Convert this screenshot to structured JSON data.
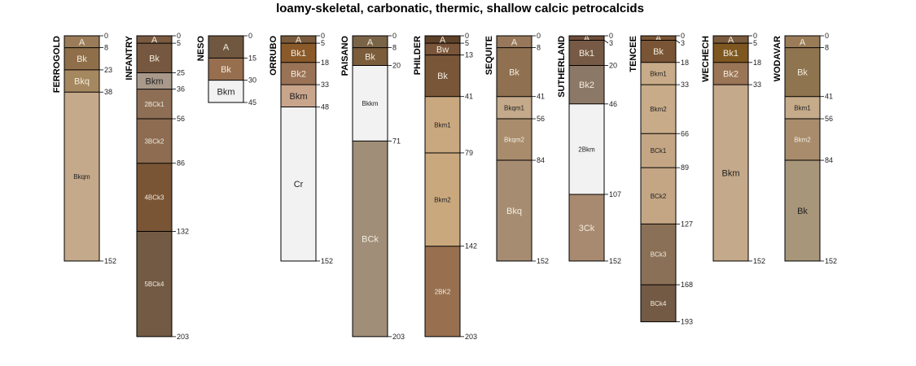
{
  "title": "loamy-skeletal, carbonatic, thermic, shallow calcic petrocalcids",
  "profiles": [
    {
      "name": "FERROGOLD",
      "horizons": [
        {
          "name": "A",
          "top": 0,
          "bottom": 8,
          "color": "#9a7c58"
        },
        {
          "name": "Bk",
          "top": 8,
          "bottom": 23,
          "color": "#8f6f4a"
        },
        {
          "name": "Bkq",
          "top": 23,
          "bottom": 38,
          "color": "#a68860"
        },
        {
          "name": "Bkqm",
          "top": 38,
          "bottom": 152,
          "color": "#c4a98a"
        }
      ]
    },
    {
      "name": "INFANTRY",
      "horizons": [
        {
          "name": "A",
          "top": 0,
          "bottom": 5,
          "color": "#7a5a40"
        },
        {
          "name": "Bk",
          "top": 5,
          "bottom": 25,
          "color": "#76573f"
        },
        {
          "name": "Bkm",
          "top": 25,
          "bottom": 36,
          "color": "#a8998a"
        },
        {
          "name": "2BCk1",
          "top": 36,
          "bottom": 56,
          "color": "#8e6f56"
        },
        {
          "name": "3BCk2",
          "top": 56,
          "bottom": 86,
          "color": "#8d6c52"
        },
        {
          "name": "4BCk3",
          "top": 86,
          "bottom": 132,
          "color": "#7a5535"
        },
        {
          "name": "5BCk4",
          "top": 132,
          "bottom": 203,
          "color": "#735a44"
        }
      ]
    },
    {
      "name": "NESO",
      "horizons": [
        {
          "name": "A",
          "top": 0,
          "bottom": 15,
          "color": "#705840"
        },
        {
          "name": "Bk",
          "top": 15,
          "bottom": 30,
          "color": "#976f4f"
        },
        {
          "name": "Bkm",
          "top": 30,
          "bottom": 45,
          "color": "#f2f2f2"
        }
      ]
    },
    {
      "name": "ORRUBO",
      "horizons": [
        {
          "name": "A",
          "top": 0,
          "bottom": 5,
          "color": "#7b5b3d"
        },
        {
          "name": "Bk1",
          "top": 5,
          "bottom": 18,
          "color": "#8a5a2b"
        },
        {
          "name": "Bk2",
          "top": 18,
          "bottom": 33,
          "color": "#9a7256"
        },
        {
          "name": "Bkm",
          "top": 33,
          "bottom": 48,
          "color": "#c9a58c"
        },
        {
          "name": "Cr",
          "top": 48,
          "bottom": 152,
          "color": "#f2f2f2"
        }
      ]
    },
    {
      "name": "PAISANO",
      "horizons": [
        {
          "name": "A",
          "top": 0,
          "bottom": 8,
          "color": "#7a6448"
        },
        {
          "name": "Bk",
          "top": 8,
          "bottom": 20,
          "color": "#7b5c3b"
        },
        {
          "name": "Bkkm",
          "top": 20,
          "bottom": 71,
          "color": "#f2f2f2"
        },
        {
          "name": "BCk",
          "top": 71,
          "bottom": 203,
          "color": "#a08e78"
        }
      ]
    },
    {
      "name": "PHILDER",
      "horizons": [
        {
          "name": "A",
          "top": 0,
          "bottom": 5,
          "color": "#5e4129"
        },
        {
          "name": "Bw",
          "top": 5,
          "bottom": 13,
          "color": "#7a553a"
        },
        {
          "name": "Bk",
          "top": 13,
          "bottom": 41,
          "color": "#7a5639"
        },
        {
          "name": "Bkm1",
          "top": 41,
          "bottom": 79,
          "color": "#caa87f"
        },
        {
          "name": "Bkm2",
          "top": 79,
          "bottom": 142,
          "color": "#c9a87d"
        },
        {
          "name": "2BK2",
          "top": 142,
          "bottom": 203,
          "color": "#987050"
        }
      ]
    },
    {
      "name": "SEQUITE",
      "horizons": [
        {
          "name": "A",
          "top": 0,
          "bottom": 8,
          "color": "#98785a"
        },
        {
          "name": "Bk",
          "top": 8,
          "bottom": 41,
          "color": "#8f7050"
        },
        {
          "name": "Bkqm1",
          "top": 41,
          "bottom": 56,
          "color": "#c4a98a"
        },
        {
          "name": "Bkqm2",
          "top": 56,
          "bottom": 84,
          "color": "#a88c6c"
        },
        {
          "name": "Bkq",
          "top": 84,
          "bottom": 152,
          "color": "#a68d72"
        }
      ]
    },
    {
      "name": "SUTHERLAND",
      "horizons": [
        {
          "name": "A",
          "top": 0,
          "bottom": 3,
          "color": "#6e4e3a"
        },
        {
          "name": "Bk1",
          "top": 3,
          "bottom": 20,
          "color": "#765a45"
        },
        {
          "name": "Bk2",
          "top": 20,
          "bottom": 46,
          "color": "#8c7866"
        },
        {
          "name": "2Bkm",
          "top": 46,
          "bottom": 107,
          "color": "#f2f2f2"
        },
        {
          "name": "3Ck",
          "top": 107,
          "bottom": 152,
          "color": "#a88a70"
        }
      ]
    },
    {
      "name": "TENCEE",
      "horizons": [
        {
          "name": "A",
          "top": 0,
          "bottom": 3,
          "color": "#7a5535"
        },
        {
          "name": "Bk",
          "top": 3,
          "bottom": 18,
          "color": "#7a5535"
        },
        {
          "name": "Bkm1",
          "top": 18,
          "bottom": 33,
          "color": "#c8ab88"
        },
        {
          "name": "Bkm2",
          "top": 33,
          "bottom": 66,
          "color": "#c8ab88"
        },
        {
          "name": "BCk1",
          "top": 66,
          "bottom": 89,
          "color": "#c4a685"
        },
        {
          "name": "BCk2",
          "top": 89,
          "bottom": 127,
          "color": "#c4a685"
        },
        {
          "name": "BCk3",
          "top": 127,
          "bottom": 168,
          "color": "#8a7056"
        },
        {
          "name": "BCk4",
          "top": 168,
          "bottom": 193,
          "color": "#735a44"
        }
      ]
    },
    {
      "name": "WECHECH",
      "horizons": [
        {
          "name": "A",
          "top": 0,
          "bottom": 5,
          "color": "#7a5a3d"
        },
        {
          "name": "Bk1",
          "top": 5,
          "bottom": 18,
          "color": "#7e5720"
        },
        {
          "name": "Bk2",
          "top": 18,
          "bottom": 33,
          "color": "#9a7556"
        },
        {
          "name": "Bkm",
          "top": 33,
          "bottom": 152,
          "color": "#c4a98a"
        }
      ]
    },
    {
      "name": "WODAVAR",
      "horizons": [
        {
          "name": "A",
          "top": 0,
          "bottom": 8,
          "color": "#9a7c58"
        },
        {
          "name": "Bk",
          "top": 8,
          "bottom": 41,
          "color": "#8f7450"
        },
        {
          "name": "Bkm1",
          "top": 41,
          "bottom": 56,
          "color": "#c6ab8a"
        },
        {
          "name": "Bkm2",
          "top": 56,
          "bottom": 84,
          "color": "#a88c6c"
        },
        {
          "name": "Bk",
          "top": 84,
          "bottom": 152,
          "color": "#a8967a"
        }
      ]
    }
  ]
}
